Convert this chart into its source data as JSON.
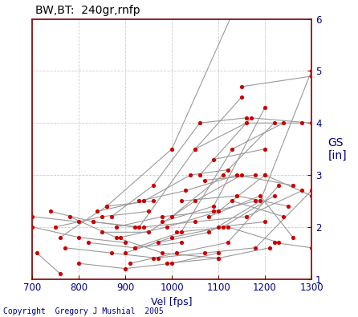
{
  "title": "BW,BT:  240gr,rnfp",
  "ylabel": "GS\n[in]",
  "xlabel": "Vel [fps]",
  "copyright": "Copyright  Gregory J Mushial  2005",
  "xlim": [
    700,
    1300
  ],
  "ylim": [
    1,
    6
  ],
  "xticks": [
    700,
    800,
    900,
    1000,
    1100,
    1200,
    1300
  ],
  "yticks": [
    1,
    2,
    3,
    4,
    5,
    6
  ],
  "bg_color": "#FFFFFF",
  "dot_color": "#CC0000",
  "line_color": "#999999",
  "series": [
    [
      [
        700,
        2.2
      ],
      [
        800,
        2.1
      ]
    ],
    [
      [
        700,
        2.0
      ],
      [
        800,
        1.8
      ],
      [
        900,
        1.7
      ]
    ],
    [
      [
        710,
        1.5
      ],
      [
        760,
        1.1
      ]
    ],
    [
      [
        740,
        2.3
      ],
      [
        830,
        2.1
      ],
      [
        920,
        2.0
      ]
    ],
    [
      [
        750,
        2.0
      ],
      [
        850,
        2.2
      ],
      [
        950,
        2.3
      ]
    ],
    [
      [
        760,
        1.8
      ],
      [
        860,
        2.4
      ],
      [
        960,
        2.5
      ]
    ],
    [
      [
        770,
        1.6
      ],
      [
        870,
        1.5
      ],
      [
        970,
        1.4
      ]
    ],
    [
      [
        780,
        2.2
      ],
      [
        880,
        1.8
      ],
      [
        980,
        1.5
      ],
      [
        1100,
        1.4
      ]
    ],
    [
      [
        800,
        1.3
      ],
      [
        900,
        1.2
      ],
      [
        1000,
        1.3
      ],
      [
        1100,
        1.5
      ]
    ],
    [
      [
        820,
        1.7
      ],
      [
        920,
        1.6
      ],
      [
        1020,
        1.7
      ]
    ],
    [
      [
        830,
        2.1
      ],
      [
        930,
        2.0
      ],
      [
        1050,
        3.5
      ],
      [
        1150,
        4.5
      ]
    ],
    [
      [
        840,
        2.3
      ],
      [
        940,
        2.5
      ],
      [
        1040,
        3.0
      ],
      [
        1120,
        3.1
      ]
    ],
    [
      [
        850,
        1.9
      ],
      [
        950,
        1.9
      ],
      [
        1050,
        2.5
      ],
      [
        1150,
        3.0
      ]
    ],
    [
      [
        860,
        2.4
      ],
      [
        1000,
        3.5
      ],
      [
        1130,
        6.1
      ]
    ],
    [
      [
        870,
        2.2
      ],
      [
        960,
        2.8
      ],
      [
        1060,
        4.0
      ],
      [
        1160,
        4.1
      ]
    ],
    [
      [
        880,
        2.0
      ],
      [
        980,
        2.2
      ],
      [
        1090,
        2.3
      ],
      [
        1180,
        2.5
      ]
    ],
    [
      [
        890,
        1.8
      ],
      [
        990,
        2.0
      ],
      [
        1100,
        2.3
      ],
      [
        1200,
        3.0
      ]
    ],
    [
      [
        900,
        1.5
      ],
      [
        1000,
        1.8
      ],
      [
        1110,
        2.0
      ],
      [
        1220,
        2.6
      ]
    ],
    [
      [
        910,
        1.3
      ],
      [
        1010,
        1.5
      ],
      [
        1120,
        1.7
      ],
      [
        1230,
        2.8
      ]
    ],
    [
      [
        920,
        1.6
      ],
      [
        1020,
        1.9
      ],
      [
        1130,
        3.5
      ],
      [
        1240,
        4.0
      ]
    ],
    [
      [
        930,
        2.5
      ],
      [
        1030,
        2.7
      ],
      [
        1140,
        3.0
      ],
      [
        1260,
        2.8
      ]
    ],
    [
      [
        940,
        2.0
      ],
      [
        1050,
        2.1
      ],
      [
        1160,
        2.2
      ],
      [
        1280,
        2.7
      ]
    ],
    [
      [
        960,
        1.4
      ],
      [
        1070,
        1.5
      ],
      [
        1180,
        1.6
      ],
      [
        1300,
        2.7
      ]
    ],
    [
      [
        970,
        1.7
      ],
      [
        1080,
        1.9
      ],
      [
        1190,
        2.5
      ],
      [
        1300,
        5.0
      ]
    ],
    [
      [
        980,
        2.1
      ],
      [
        1090,
        2.4
      ],
      [
        1200,
        4.3
      ]
    ],
    [
      [
        990,
        1.3
      ],
      [
        1100,
        1.4
      ],
      [
        1210,
        1.6
      ]
    ],
    [
      [
        1000,
        2.2
      ],
      [
        1110,
        3.0
      ],
      [
        1220,
        4.0
      ]
    ],
    [
      [
        1010,
        1.9
      ],
      [
        1120,
        2.0
      ],
      [
        1230,
        1.7
      ]
    ],
    [
      [
        1020,
        2.5
      ],
      [
        1140,
        2.6
      ],
      [
        1250,
        2.4
      ]
    ],
    [
      [
        1050,
        3.5
      ],
      [
        1160,
        4.0
      ],
      [
        1280,
        4.0
      ]
    ],
    [
      [
        1060,
        3.0
      ],
      [
        1170,
        4.1
      ],
      [
        1300,
        4.0
      ]
    ],
    [
      [
        1070,
        2.9
      ],
      [
        1180,
        3.0
      ]
    ],
    [
      [
        1080,
        2.2
      ],
      [
        1190,
        2.6
      ],
      [
        1260,
        1.8
      ]
    ],
    [
      [
        1090,
        3.3
      ],
      [
        1200,
        3.5
      ]
    ],
    [
      [
        1100,
        2.0
      ],
      [
        1200,
        2.1
      ]
    ],
    [
      [
        1130,
        2.5
      ],
      [
        1240,
        2.2
      ]
    ],
    [
      [
        1150,
        4.7
      ],
      [
        1300,
        4.9
      ]
    ],
    [
      [
        1200,
        3.0
      ],
      [
        1300,
        2.6
      ]
    ],
    [
      [
        1220,
        1.7
      ],
      [
        1300,
        1.6
      ]
    ]
  ]
}
